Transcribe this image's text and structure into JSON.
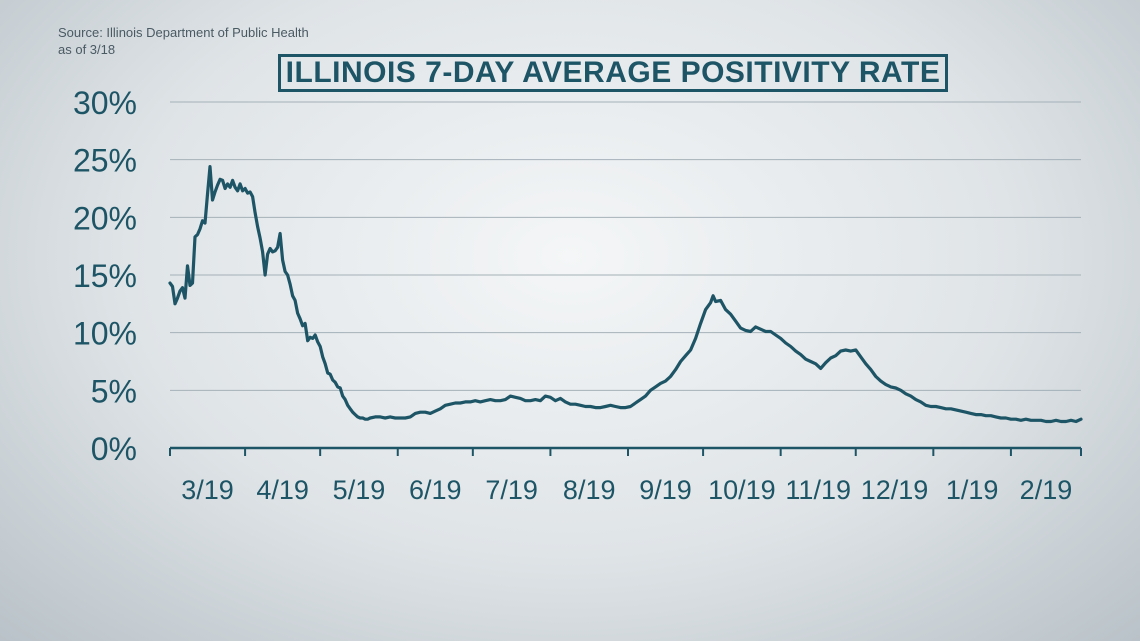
{
  "source": {
    "line1": "Source: Illinois Department of Public Health",
    "line2": "as of 3/18"
  },
  "colors": {
    "line": "#1e5566",
    "axis": "#1e5566",
    "grid": "#a4b1b8"
  },
  "chart_data": {
    "type": "line",
    "title": "ILLINOIS 7-DAY AVERAGE POSITIVITY RATE",
    "xlabel": "",
    "ylabel": "",
    "ylim": [
      0,
      30
    ],
    "xlim": [
      0,
      364
    ],
    "grid": true,
    "y_ticks": [
      0,
      5,
      10,
      15,
      20,
      25,
      30
    ],
    "y_tick_labels": [
      "0%",
      "5%",
      "10%",
      "15%",
      "20%",
      "25%",
      "30%"
    ],
    "x_ticks": [
      0,
      30,
      60,
      91,
      121,
      152,
      183,
      213,
      244,
      274,
      305,
      336
    ],
    "x_tick_labels": [
      "3/19",
      "4/19",
      "5/19",
      "6/19",
      "7/19",
      "8/19",
      "9/19",
      "10/19",
      "11/19",
      "12/19",
      "1/19",
      "2/19"
    ],
    "series": [
      {
        "points": [
          [
            0,
            14.3
          ],
          [
            1,
            14.0
          ],
          [
            2,
            12.5
          ],
          [
            3,
            13.0
          ],
          [
            4,
            13.6
          ],
          [
            5,
            13.9
          ],
          [
            6,
            13.0
          ],
          [
            7,
            15.8
          ],
          [
            8,
            14.1
          ],
          [
            9,
            14.3
          ],
          [
            10,
            18.3
          ],
          [
            11,
            18.5
          ],
          [
            12,
            19.0
          ],
          [
            13,
            19.7
          ],
          [
            14,
            19.5
          ],
          [
            15,
            22.0
          ],
          [
            16,
            24.4
          ],
          [
            17,
            21.5
          ],
          [
            18,
            22.2
          ],
          [
            19,
            22.8
          ],
          [
            20,
            23.3
          ],
          [
            21,
            23.2
          ],
          [
            22,
            22.5
          ],
          [
            23,
            22.9
          ],
          [
            24,
            22.6
          ],
          [
            25,
            23.2
          ],
          [
            26,
            22.6
          ],
          [
            27,
            22.3
          ],
          [
            28,
            22.9
          ],
          [
            29,
            22.3
          ],
          [
            30,
            22.5
          ],
          [
            31,
            22.1
          ],
          [
            32,
            22.2
          ],
          [
            33,
            21.8
          ],
          [
            34,
            20.4
          ],
          [
            35,
            19.2
          ],
          [
            36,
            18.2
          ],
          [
            37,
            17.0
          ],
          [
            38,
            15.0
          ],
          [
            39,
            16.8
          ],
          [
            40,
            17.3
          ],
          [
            41,
            17.0
          ],
          [
            42,
            17.1
          ],
          [
            43,
            17.4
          ],
          [
            44,
            18.6
          ],
          [
            45,
            16.3
          ],
          [
            46,
            15.3
          ],
          [
            47,
            15.0
          ],
          [
            48,
            14.2
          ],
          [
            49,
            13.2
          ],
          [
            50,
            12.8
          ],
          [
            51,
            11.7
          ],
          [
            52,
            11.2
          ],
          [
            53,
            10.6
          ],
          [
            54,
            10.8
          ],
          [
            55,
            9.3
          ],
          [
            56,
            9.6
          ],
          [
            57,
            9.5
          ],
          [
            58,
            9.8
          ],
          [
            59,
            9.2
          ],
          [
            60,
            8.8
          ],
          [
            61,
            7.9
          ],
          [
            62,
            7.3
          ],
          [
            63,
            6.5
          ],
          [
            64,
            6.4
          ],
          [
            65,
            5.9
          ],
          [
            66,
            5.7
          ],
          [
            67,
            5.3
          ],
          [
            68,
            5.2
          ],
          [
            69,
            4.5
          ],
          [
            70,
            4.2
          ],
          [
            71,
            3.7
          ],
          [
            72,
            3.4
          ],
          [
            73,
            3.1
          ],
          [
            74,
            2.9
          ],
          [
            75,
            2.7
          ],
          [
            76,
            2.6
          ],
          [
            77,
            2.6
          ],
          [
            78,
            2.5
          ],
          [
            79,
            2.5
          ],
          [
            80,
            2.6
          ],
          [
            82,
            2.7
          ],
          [
            84,
            2.7
          ],
          [
            86,
            2.6
          ],
          [
            88,
            2.7
          ],
          [
            90,
            2.6
          ],
          [
            92,
            2.6
          ],
          [
            94,
            2.6
          ],
          [
            96,
            2.7
          ],
          [
            98,
            3.0
          ],
          [
            100,
            3.1
          ],
          [
            102,
            3.1
          ],
          [
            104,
            3.0
          ],
          [
            106,
            3.2
          ],
          [
            108,
            3.4
          ],
          [
            110,
            3.7
          ],
          [
            112,
            3.8
          ],
          [
            114,
            3.9
          ],
          [
            116,
            3.9
          ],
          [
            118,
            4.0
          ],
          [
            120,
            4.0
          ],
          [
            122,
            4.1
          ],
          [
            124,
            4.0
          ],
          [
            126,
            4.1
          ],
          [
            128,
            4.2
          ],
          [
            130,
            4.1
          ],
          [
            132,
            4.1
          ],
          [
            134,
            4.2
          ],
          [
            136,
            4.5
          ],
          [
            138,
            4.4
          ],
          [
            140,
            4.3
          ],
          [
            142,
            4.1
          ],
          [
            144,
            4.1
          ],
          [
            146,
            4.2
          ],
          [
            148,
            4.1
          ],
          [
            150,
            4.5
          ],
          [
            152,
            4.4
          ],
          [
            154,
            4.1
          ],
          [
            156,
            4.3
          ],
          [
            158,
            4.0
          ],
          [
            160,
            3.8
          ],
          [
            162,
            3.8
          ],
          [
            164,
            3.7
          ],
          [
            166,
            3.6
          ],
          [
            168,
            3.6
          ],
          [
            170,
            3.5
          ],
          [
            172,
            3.5
          ],
          [
            174,
            3.6
          ],
          [
            176,
            3.7
          ],
          [
            178,
            3.6
          ],
          [
            180,
            3.5
          ],
          [
            182,
            3.5
          ],
          [
            184,
            3.6
          ],
          [
            186,
            3.9
          ],
          [
            188,
            4.2
          ],
          [
            190,
            4.5
          ],
          [
            192,
            5.0
          ],
          [
            194,
            5.3
          ],
          [
            196,
            5.6
          ],
          [
            198,
            5.8
          ],
          [
            200,
            6.2
          ],
          [
            202,
            6.8
          ],
          [
            204,
            7.5
          ],
          [
            206,
            8.0
          ],
          [
            208,
            8.5
          ],
          [
            210,
            9.5
          ],
          [
            212,
            10.8
          ],
          [
            214,
            12.0
          ],
          [
            216,
            12.6
          ],
          [
            217,
            13.2
          ],
          [
            218,
            12.7
          ],
          [
            220,
            12.8
          ],
          [
            222,
            12.0
          ],
          [
            224,
            11.6
          ],
          [
            226,
            11.0
          ],
          [
            228,
            10.4
          ],
          [
            230,
            10.2
          ],
          [
            232,
            10.1
          ],
          [
            234,
            10.5
          ],
          [
            236,
            10.3
          ],
          [
            238,
            10.1
          ],
          [
            240,
            10.1
          ],
          [
            242,
            9.8
          ],
          [
            244,
            9.5
          ],
          [
            246,
            9.1
          ],
          [
            248,
            8.8
          ],
          [
            250,
            8.4
          ],
          [
            252,
            8.1
          ],
          [
            254,
            7.7
          ],
          [
            256,
            7.5
          ],
          [
            258,
            7.3
          ],
          [
            260,
            6.9
          ],
          [
            262,
            7.4
          ],
          [
            264,
            7.8
          ],
          [
            266,
            8.0
          ],
          [
            268,
            8.4
          ],
          [
            270,
            8.5
          ],
          [
            272,
            8.4
          ],
          [
            274,
            8.5
          ],
          [
            276,
            7.9
          ],
          [
            278,
            7.3
          ],
          [
            280,
            6.8
          ],
          [
            282,
            6.2
          ],
          [
            284,
            5.8
          ],
          [
            286,
            5.5
          ],
          [
            288,
            5.3
          ],
          [
            290,
            5.2
          ],
          [
            292,
            5.0
          ],
          [
            294,
            4.7
          ],
          [
            296,
            4.5
          ],
          [
            298,
            4.2
          ],
          [
            300,
            4.0
          ],
          [
            302,
            3.7
          ],
          [
            304,
            3.6
          ],
          [
            306,
            3.6
          ],
          [
            308,
            3.5
          ],
          [
            310,
            3.4
          ],
          [
            312,
            3.4
          ],
          [
            314,
            3.3
          ],
          [
            316,
            3.2
          ],
          [
            318,
            3.1
          ],
          [
            320,
            3.0
          ],
          [
            322,
            2.9
          ],
          [
            324,
            2.9
          ],
          [
            326,
            2.8
          ],
          [
            328,
            2.8
          ],
          [
            330,
            2.7
          ],
          [
            332,
            2.6
          ],
          [
            334,
            2.6
          ],
          [
            336,
            2.5
          ],
          [
            338,
            2.5
          ],
          [
            340,
            2.4
          ],
          [
            342,
            2.5
          ],
          [
            344,
            2.4
          ],
          [
            346,
            2.4
          ],
          [
            348,
            2.4
          ],
          [
            350,
            2.3
          ],
          [
            352,
            2.3
          ],
          [
            354,
            2.4
          ],
          [
            356,
            2.3
          ],
          [
            358,
            2.3
          ],
          [
            360,
            2.4
          ],
          [
            362,
            2.3
          ],
          [
            364,
            2.5
          ]
        ]
      }
    ]
  }
}
